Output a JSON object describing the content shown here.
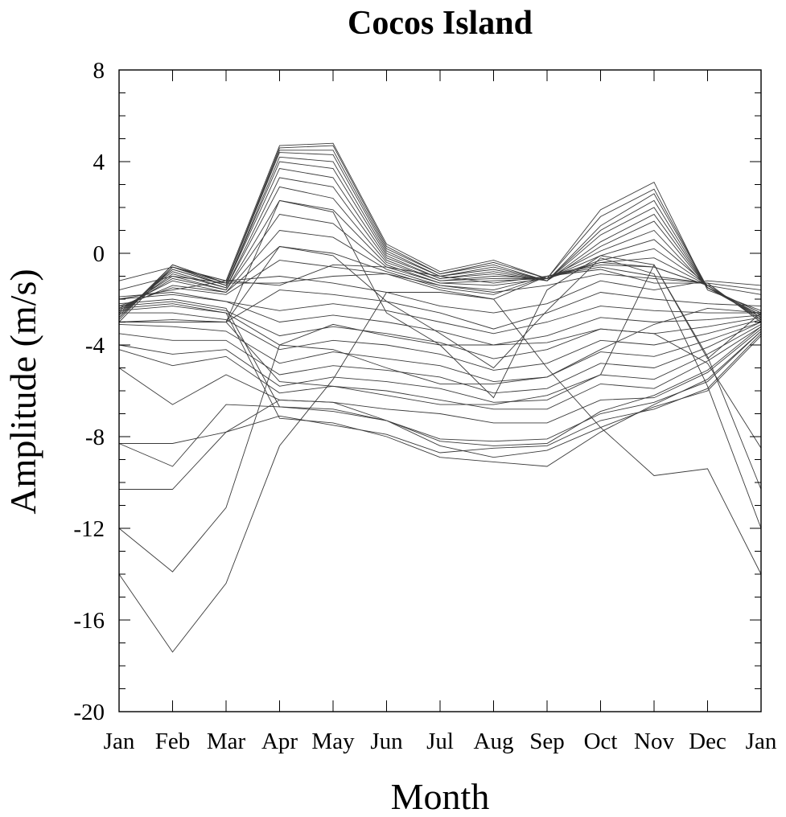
{
  "chart_data": {
    "type": "line",
    "title": "Cocos Island",
    "xlabel": "Month",
    "ylabel": "Amplitude (m/s)",
    "categories": [
      "Jan",
      "Feb",
      "Mar",
      "Apr",
      "May",
      "Jun",
      "Jul",
      "Aug",
      "Sep",
      "Oct",
      "Nov",
      "Dec",
      "Jan"
    ],
    "ylim": [
      -20,
      8
    ],
    "yticks": [
      8,
      4,
      0,
      -4,
      -8,
      -12,
      -16,
      -20
    ],
    "grid": false,
    "line_color": "#3a3a3a",
    "series": [
      {
        "values": [
          -3.0,
          -0.6,
          -1.2,
          4.7,
          4.8,
          0.4,
          -0.8,
          -0.3,
          -1.1,
          1.9,
          3.1,
          -1.6,
          -2.5
        ]
      },
      {
        "values": [
          -2.8,
          -0.5,
          -1.3,
          4.6,
          4.7,
          0.3,
          -0.9,
          -0.4,
          -1.1,
          1.6,
          2.8,
          -1.5,
          -2.6
        ]
      },
      {
        "values": [
          -2.9,
          -0.5,
          -1.3,
          4.5,
          4.5,
          0.2,
          -0.9,
          -0.5,
          -1.2,
          1.2,
          2.6,
          -1.5,
          -2.6
        ]
      },
      {
        "values": [
          -2.8,
          -0.6,
          -1.3,
          4.4,
          4.3,
          0.1,
          -1.0,
          -0.6,
          -1.2,
          1.0,
          2.3,
          -1.5,
          -2.7
        ]
      },
      {
        "values": [
          -2.8,
          -0.6,
          -1.4,
          4.2,
          4.0,
          0.0,
          -1.0,
          -0.7,
          -1.2,
          0.8,
          2.0,
          -1.5,
          -2.7
        ]
      },
      {
        "values": [
          -2.7,
          -0.7,
          -1.4,
          4.0,
          3.7,
          -0.1,
          -1.1,
          -0.8,
          -1.2,
          0.5,
          1.7,
          -1.5,
          -2.7
        ]
      },
      {
        "values": [
          -2.7,
          -0.7,
          -1.4,
          3.7,
          3.3,
          -0.2,
          -1.1,
          -0.9,
          -1.2,
          0.3,
          1.4,
          -1.5,
          -2.7
        ]
      },
      {
        "values": [
          -2.6,
          -0.8,
          -1.5,
          3.3,
          2.9,
          -0.3,
          -1.2,
          -1.0,
          -1.1,
          0.1,
          1.0,
          -1.5,
          -2.8
        ]
      },
      {
        "values": [
          -2.6,
          -0.9,
          -1.5,
          2.9,
          2.4,
          -0.4,
          -1.2,
          -1.1,
          -1.1,
          -0.1,
          0.6,
          -1.4,
          -2.8
        ]
      },
      {
        "values": [
          -2.5,
          -1.0,
          -1.6,
          2.3,
          1.9,
          -0.5,
          -1.3,
          -1.2,
          -1.1,
          -0.3,
          0.2,
          -1.4,
          -2.8
        ]
      },
      {
        "values": [
          -2.5,
          -1.1,
          -1.6,
          1.7,
          1.3,
          -0.6,
          -1.3,
          -1.4,
          -1.1,
          -0.4,
          -0.2,
          -1.4,
          -2.9
        ]
      },
      {
        "values": [
          -2.4,
          -1.2,
          -1.7,
          1.0,
          0.7,
          -0.7,
          -1.4,
          -1.6,
          -1.0,
          -0.5,
          -0.6,
          -1.4,
          -2.9
        ]
      },
      {
        "values": [
          -2.4,
          -1.4,
          -1.7,
          0.3,
          0.0,
          -0.8,
          -1.5,
          -1.8,
          -1.0,
          -0.6,
          -1.0,
          -1.3,
          -3.0
        ]
      },
      {
        "values": [
          -2.3,
          -1.5,
          -1.8,
          -0.3,
          -0.6,
          -0.9,
          -1.6,
          -2.0,
          -1.0,
          -0.7,
          -1.3,
          -1.3,
          -3.0
        ]
      },
      {
        "values": [
          -2.0,
          -1.6,
          -1.2,
          -1.0,
          -1.3,
          -1.7,
          -2.3,
          -2.6,
          -2.2,
          -1.2,
          -1.6,
          -1.2,
          -1.4
        ]
      },
      {
        "values": [
          -1.6,
          -1.0,
          -1.3,
          -1.3,
          -1.0,
          -0.9,
          -1.4,
          -1.7,
          -1.4,
          -0.9,
          -1.1,
          -1.3,
          -1.6
        ]
      },
      {
        "values": [
          -1.2,
          -0.6,
          -1.2,
          -1.4,
          -0.5,
          -0.6,
          -1.0,
          -1.3,
          -1.0,
          -0.4,
          -0.6,
          -1.4,
          -1.8
        ]
      },
      {
        "values": [
          -3.0,
          -3.0,
          -3.0,
          -1.6,
          -1.8,
          -2.1,
          -2.6,
          -3.3,
          -2.6,
          -1.7,
          -2.0,
          -2.2,
          -2.3
        ]
      },
      {
        "values": [
          -3.0,
          -3.0,
          -3.0,
          0.3,
          -0.1,
          -2.1,
          -3.5,
          -5.0,
          -2.5,
          -0.2,
          -0.9,
          -5.8,
          -12.0
        ]
      },
      {
        "values": [
          -3.0,
          -2.9,
          -3.0,
          2.3,
          1.8,
          -2.6,
          -4.0,
          -6.3,
          -1.6,
          -0.1,
          -0.5,
          -4.5,
          -10.3
        ]
      },
      {
        "values": [
          -2.0,
          -1.8,
          -2.1,
          -2.5,
          -2.2,
          -2.5,
          -3.0,
          -3.5,
          -3.0,
          -2.3,
          -2.5,
          -2.6,
          -2.6
        ]
      },
      {
        "values": [
          -1.9,
          -1.7,
          -2.1,
          -3.0,
          -2.7,
          -3.0,
          -3.4,
          -4.0,
          -3.6,
          -2.8,
          -3.0,
          -2.9,
          -2.7
        ]
      },
      {
        "values": [
          -2.3,
          -2.1,
          -2.5,
          -3.6,
          -3.2,
          -3.5,
          -3.9,
          -4.6,
          -4.2,
          -3.3,
          -3.5,
          -3.2,
          -2.8
        ]
      },
      {
        "values": [
          -2.6,
          -2.6,
          -2.9,
          -4.2,
          -3.8,
          -4.0,
          -4.4,
          -5.1,
          -4.8,
          -3.8,
          -4.0,
          -3.5,
          -2.9
        ]
      },
      {
        "values": [
          -3.1,
          -3.2,
          -3.4,
          -4.8,
          -4.3,
          -4.6,
          -4.9,
          -5.6,
          -5.4,
          -4.3,
          -4.5,
          -3.8,
          -3.0
        ]
      },
      {
        "values": [
          -3.5,
          -3.8,
          -3.8,
          -5.3,
          -4.9,
          -5.1,
          -5.4,
          -6.1,
          -5.9,
          -4.8,
          -5.0,
          -4.1,
          -3.0
        ]
      },
      {
        "values": [
          -4.0,
          -4.4,
          -4.2,
          -5.8,
          -5.4,
          -5.6,
          -5.9,
          -6.5,
          -6.4,
          -5.3,
          -5.5,
          -4.4,
          -3.1
        ]
      },
      {
        "values": [
          -4.2,
          -4.9,
          -4.5,
          -6.1,
          -5.8,
          -6.0,
          -6.4,
          -6.8,
          -6.8,
          -5.7,
          -5.9,
          -4.7,
          -3.2
        ]
      },
      {
        "values": [
          -2.5,
          -2.3,
          -2.6,
          -4.0,
          -4.2,
          -5.0,
          -5.7,
          -5.7,
          -5.4,
          -4.2,
          -3.1,
          -2.4,
          -2.6
        ]
      },
      {
        "values": [
          -5.0,
          -6.6,
          -5.3,
          -6.4,
          -6.5,
          -6.8,
          -7.0,
          -7.4,
          -7.4,
          -6.4,
          -6.3,
          -5.2,
          -3.3
        ]
      },
      {
        "values": [
          -8.3,
          -9.3,
          -6.6,
          -6.7,
          -6.9,
          -7.3,
          -8.1,
          -8.2,
          -8.1,
          -7.0,
          -6.5,
          -5.6,
          -3.4
        ]
      },
      {
        "values": [
          -10.3,
          -10.3,
          -7.8,
          -7.1,
          -7.5,
          -7.9,
          -8.7,
          -8.5,
          -8.4,
          -7.3,
          -6.8,
          -5.9,
          -3.5
        ]
      },
      {
        "values": [
          -8.3,
          -8.3,
          -7.8,
          -6.4,
          -6.5,
          -7.3,
          -8.4,
          -8.9,
          -8.6,
          -7.6,
          -6.7,
          -6.0,
          -3.6
        ]
      },
      {
        "values": [
          -12.0,
          -13.9,
          -11.1,
          -4.0,
          -3.1,
          -3.6,
          -4.0,
          -4.0,
          -3.9,
          -3.3,
          -3.5,
          -4.8,
          -8.5
        ]
      },
      {
        "values": [
          -14.0,
          -17.4,
          -14.4,
          -8.4,
          -5.5,
          -1.7,
          -1.7,
          -2.0,
          -5.0,
          -7.6,
          -9.7,
          -9.4,
          -14.0
        ]
      },
      {
        "values": [
          -2.4,
          -2.2,
          -2.6,
          -7.2,
          -7.4,
          -8.0,
          -8.9,
          -9.1,
          -9.3,
          -7.8,
          -6.6,
          -5.5,
          -3.4
        ]
      },
      {
        "values": [
          -2.2,
          -2.0,
          -2.4,
          -6.7,
          -6.8,
          -7.3,
          -8.2,
          -8.4,
          -8.3,
          -6.9,
          -6.2,
          -5.1,
          -3.2
        ]
      },
      {
        "values": [
          -3.0,
          -3.0,
          -3.0,
          -5.6,
          -5.8,
          -6.2,
          -6.6,
          -6.6,
          -6.2,
          -5.3,
          -0.5,
          -4.6,
          -2.6
        ]
      }
    ]
  }
}
